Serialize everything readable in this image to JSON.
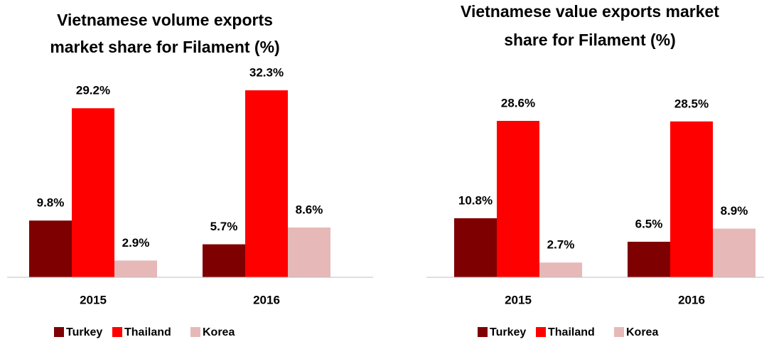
{
  "chart_data": [
    {
      "type": "bar",
      "title": [
        "Vietnamese volume exports",
        "market share for Filament  (%)"
      ],
      "categories": [
        "2015",
        "2016"
      ],
      "series": [
        {
          "name": "Turkey",
          "color": "#7f0000",
          "values": [
            9.8,
            5.7
          ],
          "value_labels": [
            "9.8%",
            "5.7%"
          ]
        },
        {
          "name": "Thailand",
          "color": "#ff0000",
          "values": [
            29.2,
            32.3
          ],
          "value_labels": [
            "29.2%",
            "32.3%"
          ]
        },
        {
          "name": "Korea",
          "color": "#e6b9b8",
          "values": [
            2.9,
            8.6
          ],
          "value_labels": [
            "2.9%",
            "8.6%"
          ]
        }
      ]
    },
    {
      "type": "bar",
      "title": [
        "Vietnamese value exports market",
        "share for Filament  (%)"
      ],
      "categories": [
        "2015",
        "2016"
      ],
      "series": [
        {
          "name": "Turkey",
          "color": "#7f0000",
          "values": [
            10.8,
            6.5
          ],
          "value_labels": [
            "10.8%",
            "6.5%"
          ]
        },
        {
          "name": "Thailand",
          "color": "#ff0000",
          "values": [
            28.6,
            28.5
          ],
          "value_labels": [
            "28.6%",
            "28.5%"
          ]
        },
        {
          "name": "Korea",
          "color": "#e6b9b8",
          "values": [
            2.7,
            8.9
          ],
          "value_labels": [
            "2.7%",
            "8.9%"
          ]
        }
      ]
    }
  ]
}
